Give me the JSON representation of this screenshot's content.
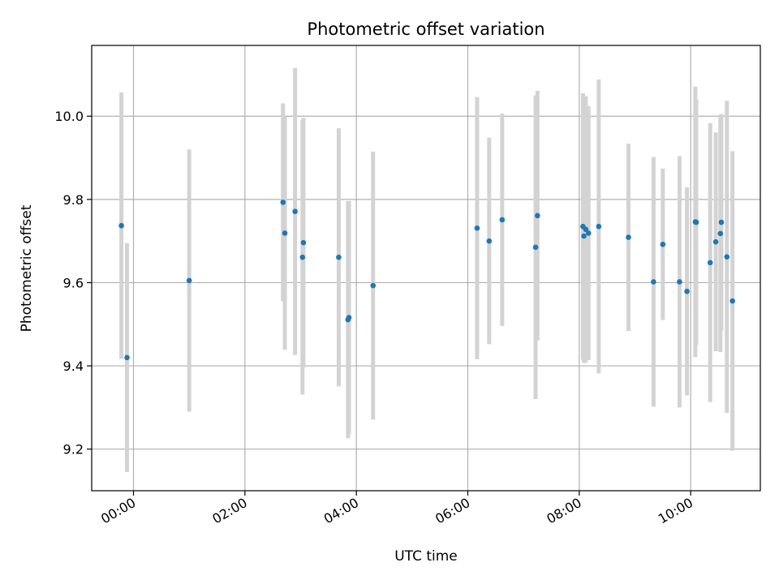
{
  "chart_data": {
    "type": "scatter",
    "title": "Photometric offset variation",
    "xlabel": "UTC time",
    "ylabel": "Photometric offset",
    "x_ticks": [
      "00:00",
      "02:00",
      "04:00",
      "06:00",
      "08:00",
      "10:00"
    ],
    "y_ticks": [
      "9.2",
      "9.4",
      "9.6",
      "9.8",
      "10.0"
    ],
    "xlim": [
      "-00:45",
      "11:15"
    ],
    "ylim": [
      9.1,
      10.17
    ],
    "grid": true,
    "legend": "none",
    "colors": {
      "point": "#1f77b4",
      "errorbar": "#d3d3d3",
      "grid": "#b0b0b0"
    },
    "points": [
      {
        "x": "-00:13",
        "y": 9.737,
        "err": 0.32
      },
      {
        "x": "-00:07",
        "y": 9.42,
        "err": 0.275
      },
      {
        "x": "01:00",
        "y": 9.605,
        "err": 0.315
      },
      {
        "x": "02:41",
        "y": 9.793,
        "err": 0.238
      },
      {
        "x": "02:43",
        "y": 9.719,
        "err": 0.28
      },
      {
        "x": "02:54",
        "y": 9.771,
        "err": 0.345
      },
      {
        "x": "03:02",
        "y": 9.661,
        "err": 0.33
      },
      {
        "x": "03:03",
        "y": 9.696,
        "err": 0.3
      },
      {
        "x": "03:41",
        "y": 9.661,
        "err": 0.31
      },
      {
        "x": "03:51",
        "y": 9.511,
        "err": 0.285
      },
      {
        "x": "03:52",
        "y": 9.516,
        "err": 0.28
      },
      {
        "x": "04:18",
        "y": 9.593,
        "err": 0.322
      },
      {
        "x": "06:10",
        "y": 9.731,
        "err": 0.315
      },
      {
        "x": "06:23",
        "y": 9.7,
        "err": 0.248
      },
      {
        "x": "06:37",
        "y": 9.751,
        "err": 0.255
      },
      {
        "x": "07:13",
        "y": 9.685,
        "err": 0.365
      },
      {
        "x": "07:15",
        "y": 9.761,
        "err": 0.3
      },
      {
        "x": "08:04",
        "y": 9.735,
        "err": 0.32
      },
      {
        "x": "08:05",
        "y": 9.712,
        "err": 0.305
      },
      {
        "x": "08:07",
        "y": 9.728,
        "err": 0.32
      },
      {
        "x": "08:10",
        "y": 9.719,
        "err": 0.305
      },
      {
        "x": "08:21",
        "y": 9.735,
        "err": 0.353
      },
      {
        "x": "08:53",
        "y": 9.709,
        "err": 0.225
      },
      {
        "x": "09:20",
        "y": 9.602,
        "err": 0.3
      },
      {
        "x": "09:30",
        "y": 9.692,
        "err": 0.182
      },
      {
        "x": "09:48",
        "y": 9.602,
        "err": 0.302
      },
      {
        "x": "09:56",
        "y": 9.579,
        "err": 0.25
      },
      {
        "x": "10:05",
        "y": 9.746,
        "err": 0.325
      },
      {
        "x": "10:06",
        "y": 9.745,
        "err": 0.295
      },
      {
        "x": "10:21",
        "y": 9.648,
        "err": 0.335
      },
      {
        "x": "10:27",
        "y": 9.698,
        "err": 0.263
      },
      {
        "x": "10:32",
        "y": 9.718,
        "err": 0.285
      },
      {
        "x": "10:33",
        "y": 9.745,
        "err": 0.26
      },
      {
        "x": "10:39",
        "y": 9.662,
        "err": 0.375
      },
      {
        "x": "10:45",
        "y": 9.556,
        "err": 0.36
      }
    ]
  }
}
